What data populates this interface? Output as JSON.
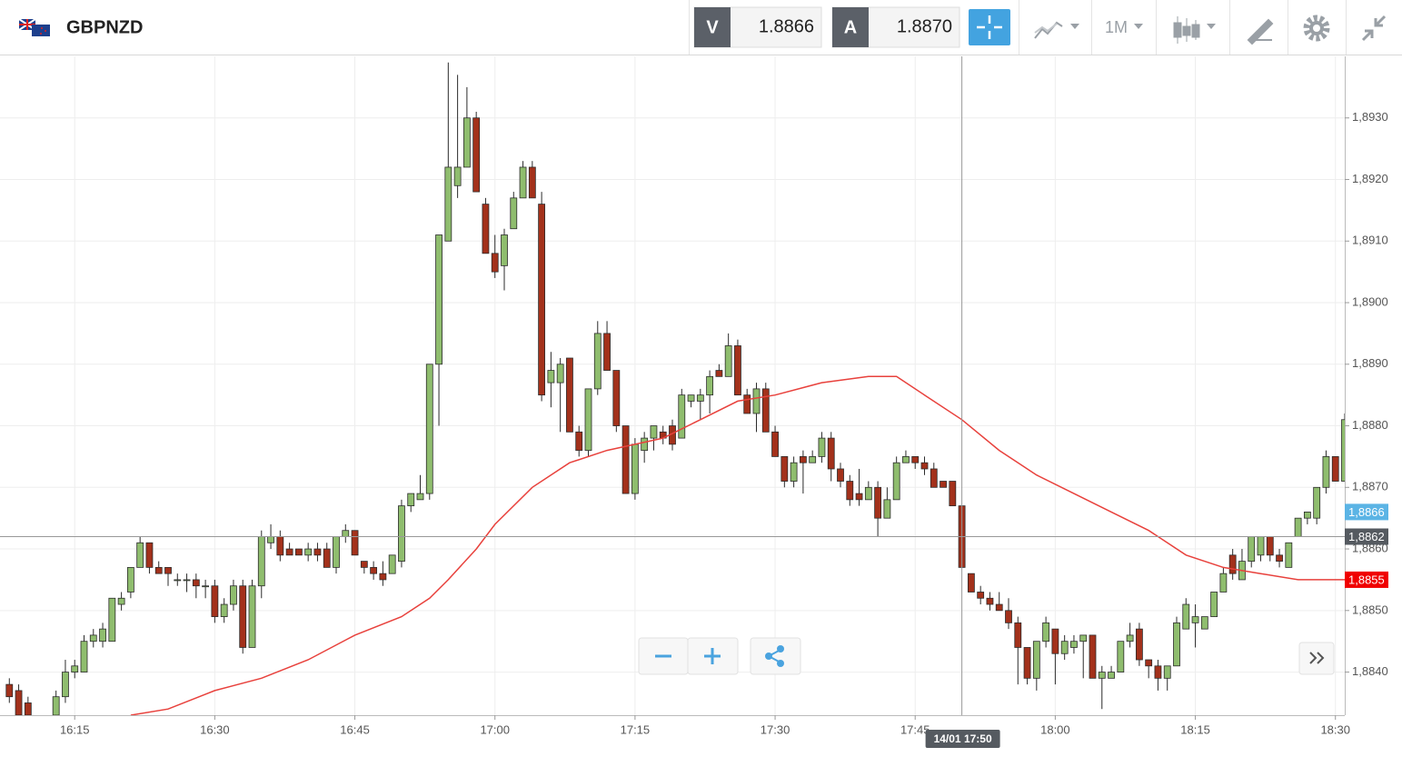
{
  "header": {
    "symbol": "GBPNZD",
    "sell_label": "V",
    "sell": "1.8866",
    "buy_label": "A",
    "buy": "1.8870",
    "timeframe": "1M"
  },
  "chart_data": {
    "type": "candlestick",
    "x": [
      "16:08",
      "16:09",
      "16:10",
      "16:13",
      "16:14",
      "16:15",
      "16:16",
      "16:17",
      "16:18",
      "16:19",
      "16:20",
      "16:21",
      "16:22",
      "16:23",
      "16:24",
      "16:25",
      "16:26",
      "16:27",
      "16:28",
      "16:29",
      "16:30",
      "16:31",
      "16:32",
      "16:33",
      "16:34",
      "16:35",
      "16:36",
      "16:37",
      "16:38",
      "16:39",
      "16:40",
      "16:41",
      "16:42",
      "16:43",
      "16:44",
      "16:45",
      "16:46",
      "16:47",
      "16:48",
      "16:49",
      "16:50",
      "16:51",
      "16:52",
      "16:53",
      "16:54",
      "16:55",
      "16:56",
      "16:57",
      "16:58",
      "16:59",
      "17:00",
      "17:01",
      "17:02",
      "17:03",
      "17:04",
      "17:05",
      "17:06",
      "17:07",
      "17:08",
      "17:09",
      "17:10",
      "17:11",
      "17:12",
      "17:13",
      "17:14",
      "17:15",
      "17:16",
      "17:17",
      "17:18",
      "17:19",
      "17:20",
      "17:21",
      "17:22",
      "17:23",
      "17:24",
      "17:25",
      "17:26",
      "17:27",
      "17:28",
      "17:29",
      "17:30",
      "17:31",
      "17:32",
      "17:33",
      "17:34",
      "17:35",
      "17:36",
      "17:37",
      "17:38",
      "17:39",
      "17:40",
      "17:41",
      "17:42",
      "17:43",
      "17:44",
      "17:45",
      "17:46",
      "17:47",
      "17:48",
      "17:49",
      "17:50",
      "17:51",
      "17:52",
      "17:53",
      "17:54",
      "17:55",
      "17:56",
      "17:57",
      "17:58",
      "17:59",
      "18:00",
      "18:01",
      "18:02",
      "18:03",
      "18:04",
      "18:05",
      "18:06",
      "18:07",
      "18:08",
      "18:09",
      "18:10",
      "18:11",
      "18:12",
      "18:13",
      "18:14",
      "18:15",
      "18:16",
      "18:17",
      "18:18",
      "18:19",
      "18:20",
      "18:21",
      "18:22",
      "18:23",
      "18:24",
      "18:25",
      "18:26",
      "18:27",
      "18:28",
      "18:29",
      "18:30",
      "18:31"
    ],
    "open": [
      1.8838,
      1.8837,
      1.8835,
      1.8833,
      1.8836,
      1.884,
      1.884,
      1.8845,
      1.8845,
      1.8845,
      1.8851,
      1.8853,
      1.8857,
      1.8861,
      1.8857,
      1.8857,
      1.8855,
      1.8855,
      1.8855,
      1.8854,
      1.8854,
      1.8849,
      1.8851,
      1.8854,
      1.8844,
      1.8854,
      1.8861,
      1.8862,
      1.886,
      1.886,
      1.8859,
      1.886,
      1.886,
      1.8857,
      1.8862,
      1.8863,
      1.8858,
      1.8857,
      1.8856,
      1.8856,
      1.8858,
      1.8867,
      1.8868,
      1.8869,
      1.889,
      1.891,
      1.8919,
      1.8922,
      1.893,
      1.8916,
      1.8908,
      1.8906,
      1.8912,
      1.8917,
      1.8922,
      1.8916,
      1.8887,
      1.8887,
      1.8891,
      1.8879,
      1.8876,
      1.8886,
      1.8895,
      1.8889,
      1.888,
      1.8869,
      1.8876,
      1.8878,
      1.8879,
      1.888,
      1.8878,
      1.8884,
      1.8884,
      1.8885,
      1.8889,
      1.8888,
      1.8893,
      1.8885,
      1.8882,
      1.8886,
      1.8879,
      1.8875,
      1.8871,
      1.8875,
      1.8874,
      1.8875,
      1.8878,
      1.8873,
      1.8871,
      1.8869,
      1.8868,
      1.887,
      1.8865,
      1.8868,
      1.8874,
      1.8875,
      1.8874,
      1.8873,
      1.8871,
      1.8871,
      1.8867,
      1.8856,
      1.8853,
      1.8852,
      1.8851,
      1.885,
      1.8848,
      1.8844,
      1.8839,
      1.8845,
      1.8847,
      1.8843,
      1.8844,
      1.8845,
      1.8846,
      1.8839,
      1.8839,
      1.884,
      1.8845,
      1.8847,
      1.8842,
      1.8841,
      1.8839,
      1.8841,
      1.8847,
      1.8848,
      1.8847,
      1.8849,
      1.8853,
      1.8859,
      1.8855,
      1.8858,
      1.8859,
      1.8862,
      1.8859,
      1.8857,
      1.8862,
      1.8865,
      1.8865,
      1.887,
      1.8875,
      1.8871
    ],
    "high": [
      1.8839,
      1.8838,
      1.8836,
      1.8837,
      1.8842,
      1.8842,
      1.8846,
      1.8847,
      1.8848,
      1.8852,
      1.8853,
      1.8857,
      1.8862,
      1.8861,
      1.8858,
      1.8857,
      1.8856,
      1.8856,
      1.8856,
      1.8855,
      1.8855,
      1.8852,
      1.8855,
      1.8855,
      1.8855,
      1.8863,
      1.8864,
      1.8863,
      1.8861,
      1.886,
      1.8861,
      1.8861,
      1.8861,
      1.8862,
      1.8864,
      1.8863,
      1.8858,
      1.8858,
      1.8858,
      1.8859,
      1.8868,
      1.8869,
      1.8872,
      1.889,
      1.8911,
      1.8939,
      1.8937,
      1.8935,
      1.8931,
      1.8917,
      1.8911,
      1.8912,
      1.8918,
      1.8923,
      1.8923,
      1.8918,
      1.8892,
      1.8891,
      1.8891,
      1.888,
      1.8886,
      1.8897,
      1.8897,
      1.8889,
      1.888,
      1.8878,
      1.8879,
      1.888,
      1.888,
      1.8881,
      1.8886,
      1.8885,
      1.8886,
      1.8889,
      1.889,
      1.8895,
      1.8894,
      1.8886,
      1.8887,
      1.8887,
      1.888,
      1.8875,
      1.8875,
      1.8876,
      1.8876,
      1.8879,
      1.8879,
      1.8874,
      1.8872,
      1.8873,
      1.8871,
      1.8871,
      1.887,
      1.8875,
      1.8876,
      1.8875,
      1.8875,
      1.8874,
      1.8871,
      1.8871,
      1.8867,
      1.8856,
      1.8854,
      1.8853,
      1.8853,
      1.8852,
      1.8849,
      1.8844,
      1.8845,
      1.8849,
      1.8847,
      1.8846,
      1.8846,
      1.8846,
      1.8846,
      1.8841,
      1.8841,
      1.8845,
      1.8848,
      1.8848,
      1.8842,
      1.8842,
      1.8841,
      1.8849,
      1.8852,
      1.8851,
      1.8849,
      1.8853,
      1.8857,
      1.886,
      1.886,
      1.8862,
      1.8862,
      1.8862,
      1.886,
      1.8861,
      1.8865,
      1.8866,
      1.887,
      1.8876,
      1.8875,
      1.8882
    ],
    "low": [
      1.8835,
      1.8833,
      1.8833,
      1.8833,
      1.8835,
      1.8839,
      1.884,
      1.8844,
      1.8844,
      1.8845,
      1.885,
      1.8852,
      1.8857,
      1.8856,
      1.8856,
      1.8854,
      1.8854,
      1.8853,
      1.8852,
      1.8852,
      1.8848,
      1.8848,
      1.885,
      1.8843,
      1.8844,
      1.8852,
      1.886,
      1.8858,
      1.8859,
      1.8859,
      1.8858,
      1.8858,
      1.8857,
      1.8856,
      1.8861,
      1.8859,
      1.8856,
      1.8855,
      1.8854,
      1.8856,
      1.8857,
      1.8866,
      1.8868,
      1.8868,
      1.888,
      1.891,
      1.8917,
      1.8922,
      1.8918,
      1.8908,
      1.8904,
      1.8902,
      1.8912,
      1.8917,
      1.8917,
      1.8884,
      1.8883,
      1.8879,
      1.8879,
      1.8875,
      1.8875,
      1.8885,
      1.8889,
      1.8879,
      1.8869,
      1.8868,
      1.8874,
      1.8876,
      1.8877,
      1.8876,
      1.8878,
      1.8883,
      1.8881,
      1.8882,
      1.8888,
      1.8888,
      1.8885,
      1.8882,
      1.8879,
      1.8879,
      1.8875,
      1.887,
      1.887,
      1.8869,
      1.8874,
      1.8874,
      1.8871,
      1.887,
      1.8867,
      1.8867,
      1.8868,
      1.8862,
      1.8865,
      1.8868,
      1.8874,
      1.8873,
      1.8872,
      1.887,
      1.887,
      1.8867,
      1.8857,
      1.8853,
      1.8851,
      1.885,
      1.885,
      1.8847,
      1.8838,
      1.8838,
      1.8837,
      1.8844,
      1.8838,
      1.8842,
      1.8843,
      1.8839,
      1.8839,
      1.8834,
      1.8839,
      1.884,
      1.8844,
      1.8841,
      1.8839,
      1.8837,
      1.8837,
      1.8841,
      1.8847,
      1.8844,
      1.8847,
      1.8849,
      1.8853,
      1.8855,
      1.8855,
      1.8857,
      1.8858,
      1.8858,
      1.8857,
      1.8857,
      1.8862,
      1.8864,
      1.8864,
      1.8869,
      1.8871,
      1.8871
    ],
    "close": [
      1.8836,
      1.8833,
      1.8833,
      1.8836,
      1.884,
      1.8841,
      1.8845,
      1.8846,
      1.8847,
      1.8852,
      1.8852,
      1.8857,
      1.8861,
      1.8857,
      1.8856,
      1.8856,
      1.8855,
      1.8855,
      1.8854,
      1.8854,
      1.8849,
      1.8851,
      1.8854,
      1.8844,
      1.8854,
      1.8862,
      1.8862,
      1.8859,
      1.8859,
      1.8859,
      1.886,
      1.8859,
      1.8857,
      1.8862,
      1.8863,
      1.8859,
      1.8857,
      1.8856,
      1.8855,
      1.8859,
      1.8867,
      1.8869,
      1.8869,
      1.889,
      1.8911,
      1.8922,
      1.8922,
      1.893,
      1.8918,
      1.8908,
      1.8905,
      1.8911,
      1.8917,
      1.8922,
      1.8917,
      1.8885,
      1.8889,
      1.889,
      1.8879,
      1.8876,
      1.8886,
      1.8895,
      1.8889,
      1.888,
      1.8869,
      1.8877,
      1.8878,
      1.888,
      1.8878,
      1.8877,
      1.8885,
      1.8885,
      1.8885,
      1.8888,
      1.8888,
      1.8893,
      1.8885,
      1.8882,
      1.8886,
      1.8879,
      1.8875,
      1.8871,
      1.8874,
      1.8874,
      1.8875,
      1.8878,
      1.8873,
      1.8871,
      1.8868,
      1.8868,
      1.887,
      1.8865,
      1.8868,
      1.8874,
      1.8875,
      1.8874,
      1.8873,
      1.887,
      1.887,
      1.8867,
      1.8857,
      1.8853,
      1.8852,
      1.8851,
      1.885,
      1.8848,
      1.8844,
      1.8839,
      1.8845,
      1.8848,
      1.8843,
      1.8845,
      1.8845,
      1.8846,
      1.8839,
      1.884,
      1.884,
      1.8845,
      1.8846,
      1.8842,
      1.8841,
      1.8839,
      1.8841,
      1.8848,
      1.8851,
      1.8849,
      1.8849,
      1.8853,
      1.8856,
      1.8856,
      1.8858,
      1.8862,
      1.8862,
      1.8859,
      1.8858,
      1.8861,
      1.8865,
      1.8866,
      1.887,
      1.8875,
      1.8871,
      1.8881
    ],
    "up_color": "#8fbd6e",
    "down_color": "#a3311b",
    "ma": {
      "color": "#e8413c",
      "x": [
        "16:21",
        "16:25",
        "16:30",
        "16:35",
        "16:40",
        "16:45",
        "16:50",
        "16:53",
        "16:55",
        "16:58",
        "17:00",
        "17:04",
        "17:08",
        "17:12",
        "17:15",
        "17:18",
        "17:22",
        "17:26",
        "17:30",
        "17:35",
        "17:40",
        "17:43",
        "17:46",
        "17:50",
        "17:54",
        "17:58",
        "18:02",
        "18:06",
        "18:10",
        "18:14",
        "18:18",
        "18:22",
        "18:26",
        "18:29",
        "18:31"
      ],
      "values": [
        1.8833,
        1.8834,
        1.8837,
        1.8839,
        1.8842,
        1.8846,
        1.8849,
        1.8852,
        1.8855,
        1.886,
        1.8864,
        1.887,
        1.8874,
        1.8876,
        1.8877,
        1.8878,
        1.8881,
        1.8884,
        1.8885,
        1.8887,
        1.8888,
        1.8888,
        1.8885,
        1.8881,
        1.8876,
        1.8872,
        1.8869,
        1.8866,
        1.8863,
        1.8859,
        1.8857,
        1.8856,
        1.8855,
        1.8855,
        1.8855
      ]
    },
    "xlim": [
      "16:07",
      "18:31"
    ],
    "xticks": [
      "16:15",
      "16:30",
      "16:45",
      "17:00",
      "17:15",
      "17:30",
      "17:45",
      "18:00",
      "18:15",
      "18:30"
    ],
    "ylim": [
      1.8833,
      1.894
    ],
    "yticks": [
      {
        "value": 1.884,
        "label": "1,8840"
      },
      {
        "value": 1.885,
        "label": "1,8850"
      },
      {
        "value": 1.886,
        "label": "1,8860"
      },
      {
        "value": 1.887,
        "label": "1,8870"
      },
      {
        "value": 1.888,
        "label": "1,8880"
      },
      {
        "value": 1.889,
        "label": "1,8890"
      },
      {
        "value": 1.89,
        "label": "1,8900"
      },
      {
        "value": 1.891,
        "label": "1,8910"
      },
      {
        "value": 1.892,
        "label": "1,8920"
      },
      {
        "value": 1.893,
        "label": "1,8930"
      }
    ],
    "grid": true,
    "price_markers": [
      {
        "value": 1.8866,
        "label": "1,8866",
        "color": "#5bb4e5"
      },
      {
        "value": 1.8855,
        "label": "1,8855",
        "color": "#f00000"
      }
    ],
    "crosshair": {
      "x": "17:50",
      "x_label": "14/01 17:50",
      "y": {
        "value": 1.8862,
        "label": "1,8862"
      },
      "color": "#555a60"
    }
  }
}
